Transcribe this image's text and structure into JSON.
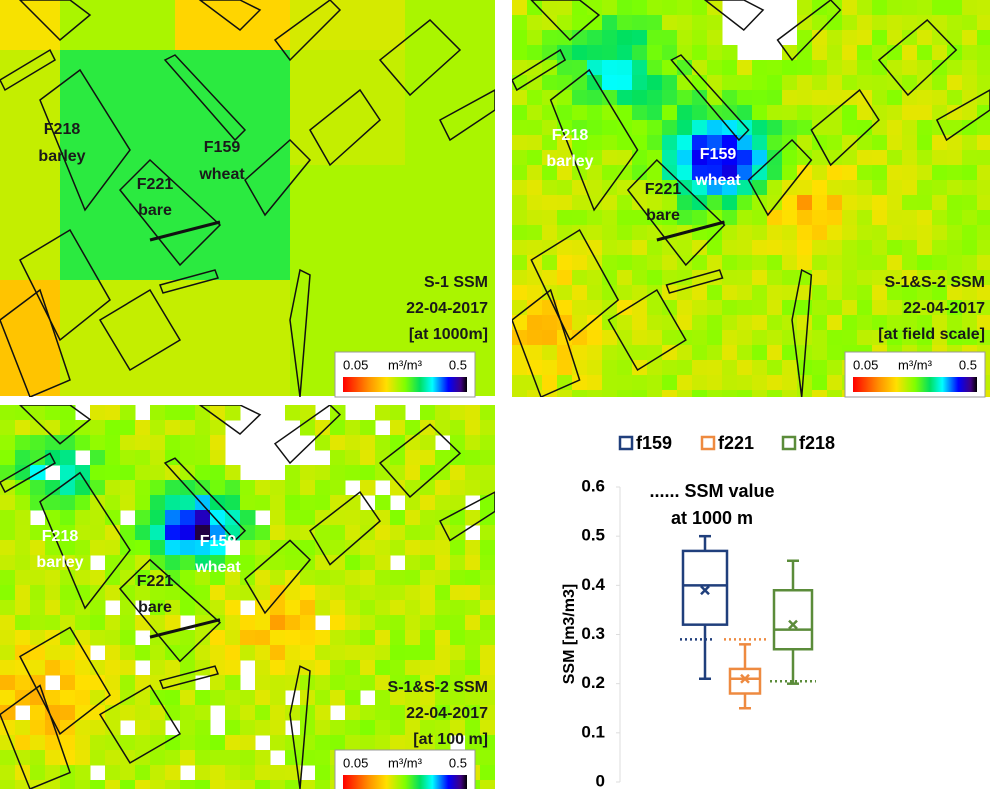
{
  "maps": [
    {
      "labels": [
        "F218",
        "barley",
        "F221",
        "bare",
        "F159",
        "wheat"
      ],
      "caption": [
        "S-1 SSM",
        "22-04-2017",
        "[at 1000m]"
      ],
      "colorbar": {
        "min": "0.05",
        "unit": "m³/m³",
        "max": "0.5"
      }
    },
    {
      "labels": [
        "F218",
        "barley",
        "F221",
        "bare",
        "F159",
        "wheat"
      ],
      "caption": [
        "S-1&S-2 SSM",
        "22-04-2017",
        "[at field scale]"
      ],
      "colorbar": {
        "min": "0.05",
        "unit": "m³/m³",
        "max": "0.5"
      }
    },
    {
      "labels": [
        "F218",
        "barley",
        "F221",
        "bare",
        "F159",
        "wheat"
      ],
      "caption": [
        "S-1&S-2 SSM",
        "22-04-2017",
        "[at 100 m]"
      ],
      "colorbar": {
        "min": "0.05",
        "unit": "m³/m³",
        "max": "0.5"
      }
    }
  ],
  "chart_data": {
    "type": "box",
    "y_label": "SSM [m3/m3]",
    "annotation": [
      "...... SSM value",
      "at 1000 m"
    ],
    "ylim": [
      0,
      0.6
    ],
    "yticks": [
      0,
      0.1,
      0.2,
      0.3,
      0.4,
      0.5,
      0.6
    ],
    "legend": "top",
    "series": [
      {
        "name": "f159",
        "color": "#203f7c",
        "low": 0.21,
        "q1": 0.32,
        "median": 0.4,
        "q3": 0.47,
        "high": 0.5,
        "mean": 0.39,
        "ref": 0.29
      },
      {
        "name": "f221",
        "color": "#ee8a40",
        "low": 0.15,
        "q1": 0.18,
        "median": 0.21,
        "q3": 0.23,
        "high": 0.28,
        "mean": 0.21,
        "ref": 0.29
      },
      {
        "name": "f218",
        "color": "#5b8c3a",
        "low": 0.2,
        "q1": 0.27,
        "median": 0.31,
        "q3": 0.39,
        "high": 0.45,
        "mean": 0.32,
        "ref": 0.205
      }
    ]
  }
}
